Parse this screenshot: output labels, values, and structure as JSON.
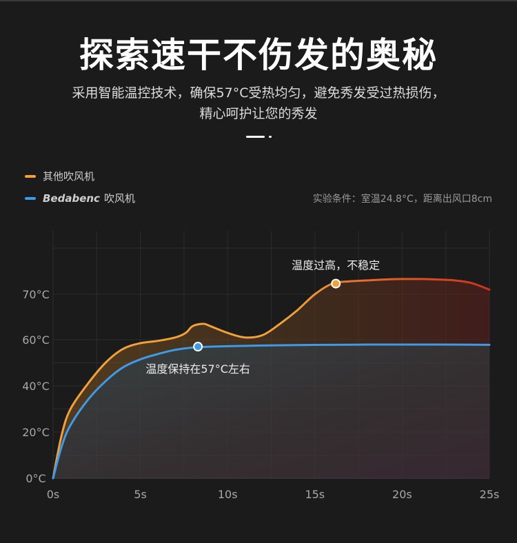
{
  "header": {
    "title": "探索速干不伤发的奥秘",
    "subtitle_line1": "采用智能温控技术，确保57°C受热均匀，避免秀发受过热损伤，",
    "subtitle_line2": "精心呵护让您的秀发"
  },
  "legend": {
    "other_label": "其他吹风机",
    "brand_name": "Bedabenc",
    "brand_suffix": "吹风机"
  },
  "note": "实验条件：室温24.8°C，距离出风口8cm",
  "colors": {
    "other": "#f0a13a",
    "other_hot": "#d9391f",
    "brand": "#3f9be6",
    "background": "#1b1b1c"
  },
  "chart_data": {
    "type": "line",
    "x_tick_labels": [
      "0s",
      "5s",
      "10s",
      "15s",
      "20s",
      "25s"
    ],
    "y_tick_labels": [
      "0°C",
      "20°C",
      "40°C",
      "60°C",
      "70°C"
    ],
    "y_tick_values": [
      0,
      20,
      40,
      60,
      70
    ],
    "xlim": [
      0,
      25
    ],
    "ylim": [
      0,
      80
    ],
    "grid": true,
    "series": [
      {
        "name": "其他吹风机",
        "x": [
          0,
          0.5,
          1,
          2,
          3,
          4,
          5,
          6,
          7,
          7.6,
          8,
          8.6,
          9,
          10,
          11,
          12,
          13,
          14,
          15,
          16,
          17,
          18,
          19,
          20,
          21,
          22,
          23,
          24,
          25
        ],
        "y": [
          0,
          19,
          30,
          41,
          50,
          56,
          58.5,
          59.5,
          60.5,
          61.5,
          63,
          63.5,
          63,
          61.5,
          60.5,
          61,
          63.5,
          66.5,
          70,
          72.3,
          72.8,
          73,
          73.2,
          73.3,
          73.3,
          73.2,
          73,
          72.4,
          71
        ]
      },
      {
        "name": "Bedabenc 吹风机",
        "x": [
          0,
          0.5,
          1,
          2,
          3,
          4,
          5,
          6,
          7,
          8,
          9,
          10,
          12,
          14,
          16,
          18,
          20,
          22,
          25
        ],
        "y": [
          0,
          14,
          23,
          34,
          42,
          48,
          51.5,
          53.8,
          55.6,
          56.6,
          57,
          57.2,
          57.5,
          57.7,
          57.8,
          57.9,
          57.9,
          57.9,
          57.8
        ]
      }
    ],
    "annotations": [
      {
        "x": 8.3,
        "y": 57,
        "series": 1,
        "text": "温度保持在57°C左右"
      },
      {
        "x": 16.2,
        "y": 72.3,
        "series": 0,
        "text": "温度过高，不稳定"
      }
    ]
  }
}
